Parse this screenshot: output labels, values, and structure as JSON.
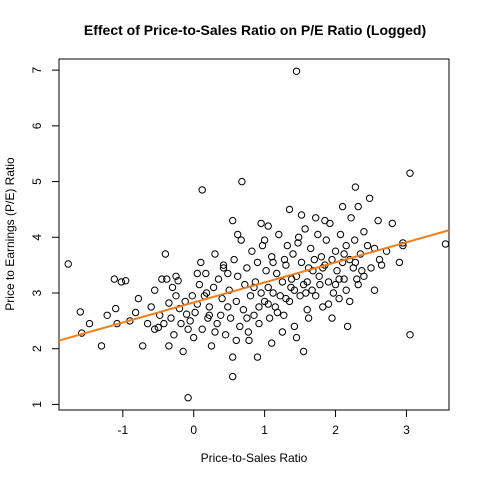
{
  "chart_data": {
    "type": "scatter",
    "title": "Effect of Price-to-Sales Ratio on P/E Ratio (Logged)",
    "xlabel": "Price-to-Sales Ratio",
    "ylabel": "Price to Earnings (P/E) Ratio",
    "xlim": [
      -1.9,
      3.6
    ],
    "ylim": [
      0.9,
      7.2
    ],
    "x_ticks": [
      -1,
      0,
      1,
      2,
      3
    ],
    "y_ticks": [
      1,
      2,
      3,
      4,
      5,
      6,
      7
    ],
    "grid": false,
    "legend": "none",
    "marker": "open-circle",
    "point_color": "#000000",
    "fit_line": {
      "slope": 0.36,
      "intercept": 2.83,
      "color": "#f07f1c"
    },
    "points": [
      [
        -1.77,
        3.52
      ],
      [
        -1.6,
        2.66
      ],
      [
        -1.58,
        2.28
      ],
      [
        -1.47,
        2.45
      ],
      [
        -1.3,
        2.05
      ],
      [
        -1.22,
        2.6
      ],
      [
        -1.12,
        3.25
      ],
      [
        -1.1,
        2.72
      ],
      [
        -1.08,
        2.45
      ],
      [
        -1.02,
        3.2
      ],
      [
        -0.96,
        3.22
      ],
      [
        -0.9,
        2.5
      ],
      [
        -0.82,
        2.65
      ],
      [
        -0.78,
        2.9
      ],
      [
        -0.72,
        2.05
      ],
      [
        -0.65,
        2.45
      ],
      [
        -0.6,
        2.75
      ],
      [
        -0.55,
        3.05
      ],
      [
        -0.5,
        2.38
      ],
      [
        -0.48,
        2.6
      ],
      [
        -0.45,
        3.25
      ],
      [
        -0.42,
        2.45
      ],
      [
        -0.4,
        3.7
      ],
      [
        -0.38,
        3.25
      ],
      [
        -0.35,
        2.82
      ],
      [
        -0.32,
        2.55
      ],
      [
        -0.3,
        3.1
      ],
      [
        -0.28,
        2.25
      ],
      [
        -0.25,
        2.95
      ],
      [
        -0.22,
        3.22
      ],
      [
        -0.2,
        2.72
      ],
      [
        -0.18,
        2.45
      ],
      [
        -0.15,
        1.95
      ],
      [
        -0.12,
        2.85
      ],
      [
        -0.1,
        2.62
      ],
      [
        -0.08,
        2.35
      ],
      [
        -0.05,
        2.5
      ],
      [
        -0.02,
        2.95
      ],
      [
        0.0,
        2.2
      ],
      [
        0.02,
        2.65
      ],
      [
        0.05,
        2.8
      ],
      [
        0.08,
        3.15
      ],
      [
        0.1,
        3.55
      ],
      [
        0.12,
        2.35
      ],
      [
        0.15,
        2.95
      ],
      [
        0.17,
        3.35
      ],
      [
        0.2,
        2.55
      ],
      [
        0.22,
        2.75
      ],
      [
        0.25,
        2.05
      ],
      [
        0.28,
        3.1
      ],
      [
        0.3,
        3.7
      ],
      [
        0.33,
        2.45
      ],
      [
        0.35,
        3.25
      ],
      [
        0.38,
        2.6
      ],
      [
        0.4,
        2.9
      ],
      [
        0.42,
        3.5
      ],
      [
        0.45,
        2.25
      ],
      [
        0.48,
        2.75
      ],
      [
        0.5,
        3.05
      ],
      [
        0.52,
        2.55
      ],
      [
        0.55,
        1.85
      ],
      [
        0.57,
        3.6
      ],
      [
        0.6,
        2.85
      ],
      [
        0.62,
        3.3
      ],
      [
        0.65,
        2.4
      ],
      [
        0.67,
        3.95
      ],
      [
        0.7,
        2.7
      ],
      [
        0.72,
        3.15
      ],
      [
        0.75,
        3.45
      ],
      [
        0.77,
        2.3
      ],
      [
        0.8,
        2.95
      ],
      [
        0.82,
        3.75
      ],
      [
        0.85,
        2.6
      ],
      [
        0.87,
        3.2
      ],
      [
        0.9,
        3.55
      ],
      [
        0.92,
        2.45
      ],
      [
        0.95,
        3.0
      ],
      [
        0.97,
        3.85
      ],
      [
        1.0,
        2.85
      ],
      [
        1.02,
        3.4
      ],
      [
        1.05,
        3.1
      ],
      [
        1.07,
        2.55
      ],
      [
        1.1,
        3.65
      ],
      [
        1.12,
        3.0
      ],
      [
        1.15,
        2.75
      ],
      [
        1.17,
        3.35
      ],
      [
        1.2,
        4.05
      ],
      [
        1.22,
        2.95
      ],
      [
        1.25,
        3.2
      ],
      [
        1.27,
        2.6
      ],
      [
        1.3,
        3.5
      ],
      [
        1.32,
        3.85
      ],
      [
        1.35,
        2.85
      ],
      [
        1.37,
        3.1
      ],
      [
        1.4,
        3.7
      ],
      [
        1.42,
        2.4
      ],
      [
        1.45,
        3.3
      ],
      [
        1.47,
        3.9
      ],
      [
        1.5,
        2.95
      ],
      [
        1.52,
        3.55
      ],
      [
        1.55,
        3.15
      ],
      [
        1.57,
        4.15
      ],
      [
        1.6,
        2.7
      ],
      [
        1.62,
        3.45
      ],
      [
        1.65,
        3.8
      ],
      [
        1.67,
        3.05
      ],
      [
        1.7,
        3.6
      ],
      [
        1.72,
        2.95
      ],
      [
        1.75,
        4.05
      ],
      [
        1.77,
        3.3
      ],
      [
        1.8,
        3.65
      ],
      [
        1.82,
        2.75
      ],
      [
        1.85,
        3.5
      ],
      [
        1.87,
        3.95
      ],
      [
        1.9,
        3.2
      ],
      [
        1.92,
        4.25
      ],
      [
        1.95,
        3.6
      ],
      [
        1.97,
        3.0
      ],
      [
        2.0,
        3.75
      ],
      [
        2.02,
        3.4
      ],
      [
        2.05,
        2.9
      ],
      [
        2.07,
        4.05
      ],
      [
        2.1,
        3.55
      ],
      [
        2.12,
        3.25
      ],
      [
        2.15,
        3.85
      ],
      [
        2.17,
        2.4
      ],
      [
        2.2,
        3.6
      ],
      [
        2.22,
        4.35
      ],
      [
        2.25,
        3.45
      ],
      [
        2.27,
        3.95
      ],
      [
        2.3,
        3.25
      ],
      [
        2.32,
        4.55
      ],
      [
        2.35,
        3.7
      ],
      [
        2.37,
        3.4
      ],
      [
        2.4,
        4.1
      ],
      [
        2.45,
        3.85
      ],
      [
        2.5,
        3.45
      ],
      [
        2.55,
        3.8
      ],
      [
        2.6,
        4.3
      ],
      [
        2.65,
        3.5
      ],
      [
        2.72,
        3.75
      ],
      [
        2.8,
        4.25
      ],
      [
        2.9,
        3.55
      ],
      [
        2.95,
        3.9
      ],
      [
        3.05,
        5.15
      ],
      [
        3.05,
        2.25
      ],
      [
        0.12,
        4.85
      ],
      [
        0.68,
        5.0
      ],
      [
        1.45,
        6.98
      ],
      [
        2.1,
        4.55
      ],
      [
        2.28,
        4.9
      ],
      [
        0.55,
        4.3
      ],
      [
        0.62,
        4.05
      ],
      [
        0.95,
        4.25
      ],
      [
        1.05,
        4.2
      ],
      [
        1.35,
        4.5
      ],
      [
        1.52,
        4.4
      ],
      [
        1.72,
        4.35
      ],
      [
        1.85,
        4.3
      ],
      [
        2.48,
        4.7
      ],
      [
        -0.08,
        1.12
      ],
      [
        0.55,
        1.5
      ],
      [
        0.9,
        1.85
      ],
      [
        1.55,
        1.95
      ],
      [
        1.1,
        2.1
      ],
      [
        1.25,
        2.3
      ],
      [
        1.45,
        2.2
      ],
      [
        0.78,
        2.15
      ],
      [
        1.95,
        2.55
      ],
      [
        2.2,
        2.85
      ],
      [
        2.55,
        3.05
      ],
      [
        3.55,
        3.88
      ],
      [
        2.95,
        3.85
      ],
      [
        1.48,
        4.0
      ],
      [
        1.12,
        3.55
      ],
      [
        0.42,
        3.45
      ],
      [
        0.05,
        3.35
      ],
      [
        -0.25,
        3.3
      ],
      [
        0.3,
        2.3
      ],
      [
        0.6,
        2.15
      ],
      [
        1.0,
        3.95
      ],
      [
        1.3,
        2.9
      ],
      [
        1.6,
        3.2
      ],
      [
        1.9,
        2.8
      ],
      [
        2.15,
        3.05
      ],
      [
        2.4,
        3.3
      ],
      [
        2.62,
        3.6
      ],
      [
        0.85,
        3.1
      ],
      [
        1.18,
        2.65
      ],
      [
        1.42,
        3.05
      ],
      [
        1.62,
        2.55
      ],
      [
        1.78,
        3.15
      ],
      [
        2.0,
        3.15
      ],
      [
        2.28,
        3.55
      ],
      [
        0.18,
        3.0
      ],
      [
        0.48,
        3.35
      ],
      [
        -0.55,
        2.35
      ],
      [
        -0.35,
        2.05
      ],
      [
        0.22,
        2.6
      ],
      [
        0.75,
        2.55
      ],
      [
        1.05,
        2.8
      ],
      [
        1.28,
        3.6
      ],
      [
        1.58,
        3.0
      ],
      [
        1.82,
        3.45
      ],
      [
        2.05,
        3.25
      ],
      [
        2.32,
        3.15
      ],
      [
        0.92,
        2.75
      ],
      [
        1.38,
        3.25
      ],
      [
        1.68,
        3.4
      ],
      [
        2.12,
        3.7
      ]
    ]
  }
}
